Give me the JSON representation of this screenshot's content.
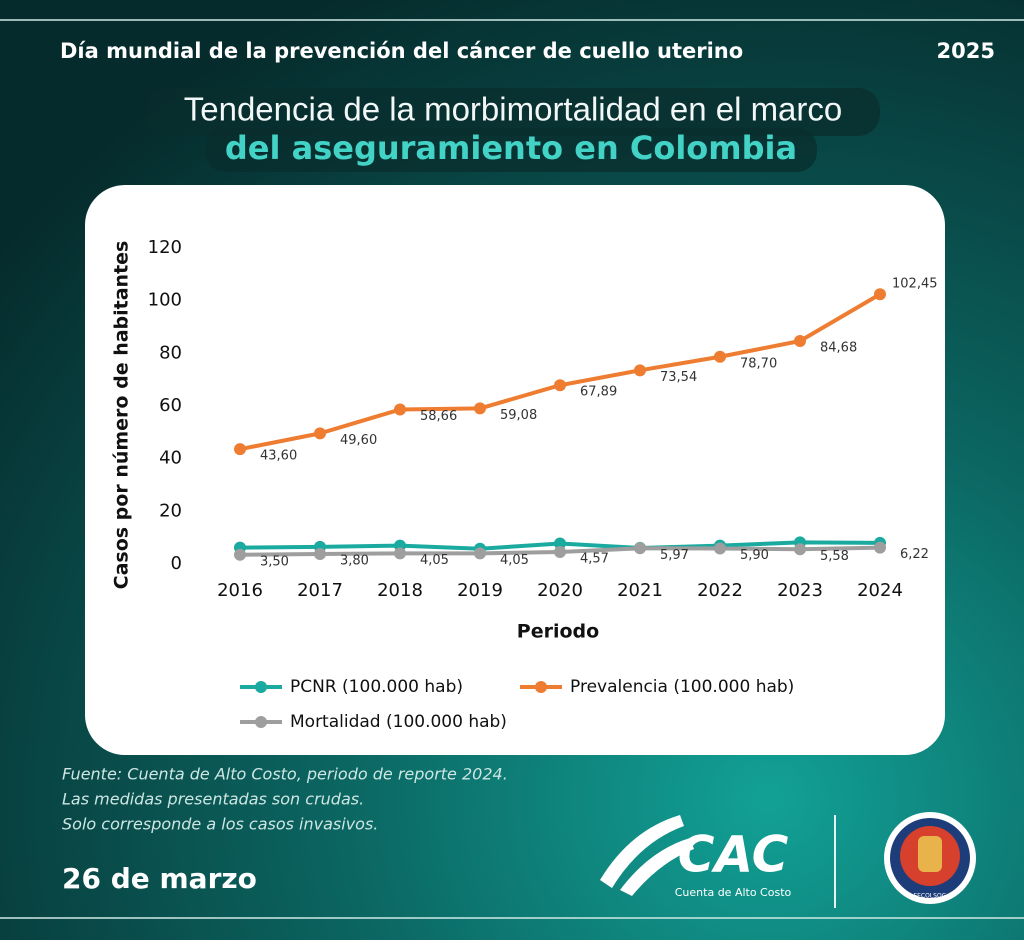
{
  "header": {
    "event": "Día mundial de la prevención del cáncer de cuello uterino",
    "year": "2025",
    "title_line1": "Tendencia de la morbimortalidad en el marco",
    "title_line2": "del aseguramiento en Colombia"
  },
  "chart_data": {
    "type": "line",
    "categories": [
      "2016",
      "2017",
      "2018",
      "2019",
      "2020",
      "2021",
      "2022",
      "2023",
      "2024"
    ],
    "x_label": "Periodo",
    "y_label": "Casos por número de habitantes",
    "ylim": [
      0,
      120
    ],
    "yticks": [
      0,
      20,
      40,
      60,
      80,
      100,
      120
    ],
    "grid": false,
    "legend": "bottom",
    "series": [
      {
        "name": "PCNR (100.000 hab)",
        "color": "#1aaa9f",
        "values": [
          6.2,
          6.5,
          7.0,
          5.8,
          7.8,
          6.1,
          7.0,
          8.2,
          8.0
        ]
      },
      {
        "name": "Prevalencia (100.000 hab)",
        "color": "#ee7d31",
        "values": [
          43.6,
          49.6,
          58.66,
          59.08,
          67.89,
          73.54,
          78.7,
          84.68,
          102.45
        ],
        "value_labels": [
          "43,60",
          "49,60",
          "58,66",
          "59,08",
          "67,89",
          "73,54",
          "78,70",
          "84,68",
          "102,45"
        ]
      },
      {
        "name": "Mortalidad (100.000 hab)",
        "color": "#9e9e9e",
        "values": [
          3.5,
          3.8,
          4.05,
          4.05,
          4.57,
          5.97,
          5.9,
          5.58,
          6.22
        ],
        "value_labels": [
          "3,50",
          "3,80",
          "4,05",
          "4,05",
          "4,57",
          "5,97",
          "5,90",
          "5,58",
          "6,22"
        ]
      }
    ]
  },
  "footer": {
    "notes": [
      "Fuente: Cuenta de Alto Costo, periodo de reporte 2024.",
      "Las medidas presentadas son crudas.",
      "Solo corresponde a los casos invasivos."
    ],
    "date": "26 de marzo"
  },
  "logos": {
    "cac": "CAC",
    "cac_subtitle": "Cuenta de Alto Costo",
    "fecolsog": "FECOLSOG"
  }
}
